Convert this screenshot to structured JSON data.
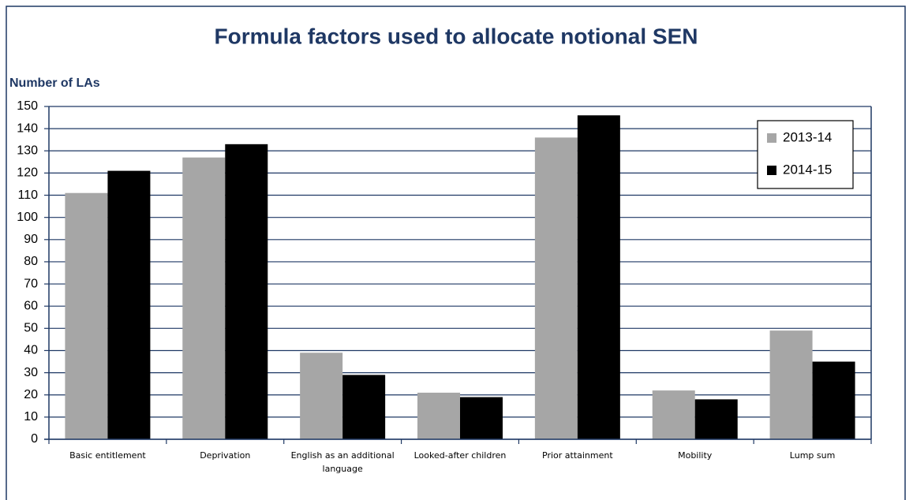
{
  "chart_data": {
    "type": "bar",
    "title": "Formula factors used to allocate notional SEN",
    "y_label": "Number of LAs",
    "categories": [
      "Basic entitlement",
      "Deprivation",
      "English as an additional language",
      "Looked-after children",
      "Prior attainment",
      "Mobility",
      "Lump sum"
    ],
    "series": [
      {
        "name": "2013-14",
        "color": "#a6a6a6",
        "values": [
          111,
          127,
          39,
          21,
          136,
          22,
          49
        ]
      },
      {
        "name": "2014-15",
        "color": "#000000",
        "values": [
          121,
          133,
          29,
          19,
          146,
          18,
          35
        ]
      }
    ],
    "ylim": [
      0,
      150
    ],
    "yticks": [
      0,
      10,
      20,
      30,
      40,
      50,
      60,
      70,
      80,
      90,
      100,
      110,
      120,
      130,
      140,
      150
    ],
    "grid": true,
    "legend": "upper right"
  }
}
